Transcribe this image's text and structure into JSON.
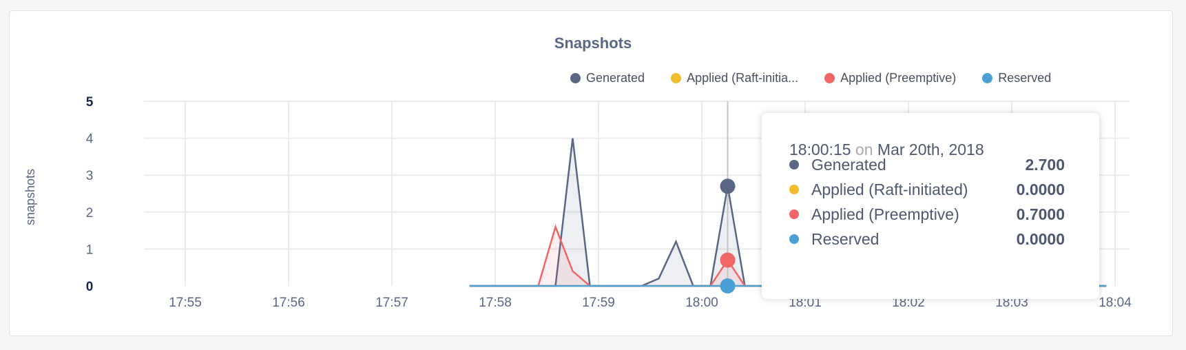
{
  "chart_data": {
    "type": "area",
    "title": "Snapshots",
    "ylabel": "snapshots",
    "xlabel": "",
    "ylim": [
      0,
      5
    ],
    "yticks": [
      "0",
      "1",
      "2",
      "3",
      "4",
      "5"
    ],
    "xticks": [
      "17:55",
      "17:56",
      "17:57",
      "17:58",
      "17:59",
      "18:00",
      "18:01",
      "18:02",
      "18:03",
      "18:04"
    ],
    "grid": true,
    "legend_position": "top-right",
    "series": [
      {
        "name": "Generated",
        "color": "#5b6685",
        "points": [
          [
            "17:57:45",
            0
          ],
          [
            "17:58:35",
            0
          ],
          [
            "17:58:45",
            4
          ],
          [
            "17:58:55",
            0
          ],
          [
            "17:59:25",
            0
          ],
          [
            "17:59:35",
            0.2
          ],
          [
            "17:59:45",
            1.2
          ],
          [
            "17:59:55",
            0
          ],
          [
            "18:00:05",
            0
          ],
          [
            "18:00:15",
            2.7
          ],
          [
            "18:00:25",
            0
          ],
          [
            "18:03:55",
            0
          ]
        ]
      },
      {
        "name": "Applied (Raft-initiated)",
        "legend_label": "Applied (Raft-initia...",
        "color": "#f2bc2a",
        "points": [
          [
            "17:57:45",
            0
          ],
          [
            "18:03:55",
            0
          ]
        ]
      },
      {
        "name": "Applied (Preemptive)",
        "color": "#f06565",
        "points": [
          [
            "17:57:45",
            0
          ],
          [
            "17:58:25",
            0
          ],
          [
            "17:58:35",
            1.6
          ],
          [
            "17:58:45",
            0.4
          ],
          [
            "17:58:55",
            0
          ],
          [
            "18:00:05",
            0
          ],
          [
            "18:00:15",
            0.7
          ],
          [
            "18:00:25",
            0
          ],
          [
            "18:03:55",
            0
          ]
        ]
      },
      {
        "name": "Reserved",
        "color": "#4a9fd4",
        "points": [
          [
            "17:57:45",
            0
          ],
          [
            "18:03:55",
            0
          ]
        ]
      }
    ],
    "hover_time": "18:00:15"
  },
  "tooltip": {
    "time": "18:00:15",
    "on": "on",
    "date": "Mar 20th, 2018",
    "rows": [
      {
        "label": "Generated",
        "value": "2.700",
        "color": "#5b6685"
      },
      {
        "label": "Applied (Raft-initiated)",
        "value": "0.0000",
        "color": "#f2bc2a"
      },
      {
        "label": "Applied (Preemptive)",
        "value": "0.7000",
        "color": "#f06565"
      },
      {
        "label": "Reserved",
        "value": "0.0000",
        "color": "#4a9fd4"
      }
    ]
  }
}
